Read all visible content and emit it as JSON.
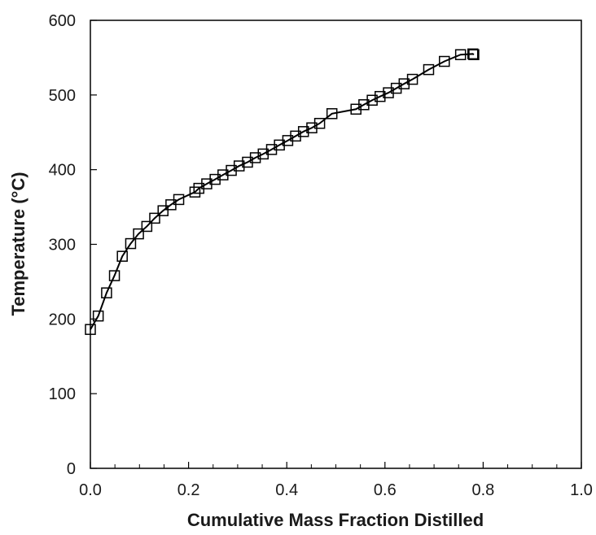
{
  "chart_data": {
    "type": "line",
    "title": "",
    "xlabel": "Cumulative Mass Fraction Distilled",
    "ylabel": "Temperature (°C)",
    "xlim": [
      0.0,
      1.0
    ],
    "ylim": [
      0,
      600
    ],
    "x_ticks": [
      "0.0",
      "0.2",
      "0.4",
      "0.6",
      "0.8",
      "1.0"
    ],
    "y_ticks": [
      "0",
      "100",
      "200",
      "300",
      "400",
      "500",
      "600"
    ],
    "grid": false,
    "legend": "none",
    "marker": "open-square",
    "line_color": "#000000",
    "series": [
      {
        "x": [
          0.0,
          0.016,
          0.033,
          0.049,
          0.065,
          0.082,
          0.098,
          0.115,
          0.131,
          0.148,
          0.164,
          0.18,
          0.213,
          0.221,
          0.237,
          0.254,
          0.27,
          0.287,
          0.303,
          0.32,
          0.336,
          0.352,
          0.369,
          0.385,
          0.402,
          0.418,
          0.434,
          0.451,
          0.467,
          0.492,
          0.541,
          0.557,
          0.574,
          0.59,
          0.607,
          0.623,
          0.639,
          0.656,
          0.689,
          0.721,
          0.754,
          0.779,
          0.781
        ],
        "y": [
          186,
          204,
          235,
          258,
          284,
          301,
          314,
          324,
          335,
          345,
          353,
          360,
          370,
          375,
          381,
          387,
          393,
          399,
          405,
          410,
          416,
          421,
          427,
          433,
          439,
          445,
          451,
          456,
          462,
          475,
          481,
          487,
          493,
          498,
          503,
          509,
          515,
          521,
          534,
          545,
          554,
          555,
          554
        ]
      }
    ]
  }
}
